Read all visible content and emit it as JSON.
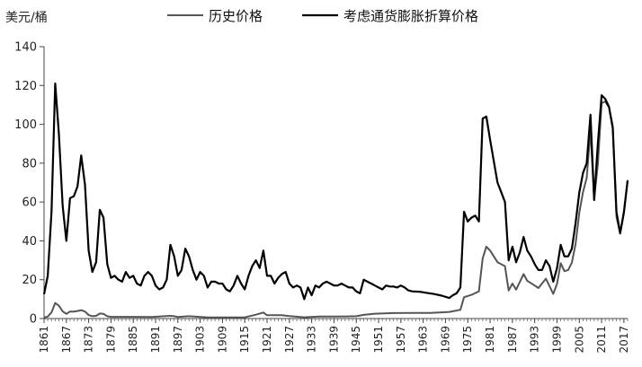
{
  "chart_data": {
    "type": "line",
    "title": "",
    "ylabel": "美元/桶",
    "xlabel": "",
    "ylim": [
      0,
      140
    ],
    "xlim": [
      1861,
      2018
    ],
    "yticks": [
      0,
      20,
      40,
      60,
      80,
      100,
      120,
      140
    ],
    "xticks": [
      1861,
      1867,
      1873,
      1879,
      1885,
      1891,
      1897,
      1903,
      1909,
      1915,
      1921,
      1927,
      1933,
      1939,
      1945,
      1951,
      1957,
      1963,
      1969,
      1975,
      1981,
      1987,
      1993,
      1999,
      2005,
      2011,
      2017
    ],
    "grid": false,
    "legend_position": "top",
    "series": [
      {
        "name": "历史价格",
        "color": "#555555",
        "points": [
          [
            1861,
            0.5
          ],
          [
            1862,
            1
          ],
          [
            1863,
            3.2
          ],
          [
            1864,
            8
          ],
          [
            1865,
            6.6
          ],
          [
            1866,
            3.7
          ],
          [
            1867,
            2.4
          ],
          [
            1868,
            3.6
          ],
          [
            1869,
            3.6
          ],
          [
            1870,
            3.9
          ],
          [
            1871,
            4.3
          ],
          [
            1872,
            3.6
          ],
          [
            1873,
            1.8
          ],
          [
            1874,
            1.2
          ],
          [
            1875,
            1.4
          ],
          [
            1876,
            2.6
          ],
          [
            1877,
            2.4
          ],
          [
            1878,
            1.2
          ],
          [
            1879,
            0.9
          ],
          [
            1880,
            0.9
          ],
          [
            1885,
            0.9
          ],
          [
            1890,
            0.8
          ],
          [
            1895,
            1.4
          ],
          [
            1896,
            1.2
          ],
          [
            1897,
            0.8
          ],
          [
            1900,
            1.2
          ],
          [
            1905,
            0.6
          ],
          [
            1910,
            0.6
          ],
          [
            1915,
            0.6
          ],
          [
            1918,
            2
          ],
          [
            1920,
            3.1
          ],
          [
            1921,
            1.7
          ],
          [
            1925,
            1.7
          ],
          [
            1927,
            1.3
          ],
          [
            1931,
            0.65
          ],
          [
            1935,
            1
          ],
          [
            1940,
            1.0
          ],
          [
            1945,
            1.2
          ],
          [
            1947,
            1.9
          ],
          [
            1950,
            2.5
          ],
          [
            1955,
            2.8
          ],
          [
            1960,
            2.9
          ],
          [
            1965,
            2.9
          ],
          [
            1970,
            3.4
          ],
          [
            1973,
            4.5
          ],
          [
            1974,
            11
          ],
          [
            1976,
            12.2
          ],
          [
            1978,
            14
          ],
          [
            1979,
            31
          ],
          [
            1980,
            37
          ],
          [
            1981,
            35
          ],
          [
            1982,
            32
          ],
          [
            1983,
            29
          ],
          [
            1985,
            27
          ],
          [
            1986,
            14.4
          ],
          [
            1987,
            18
          ],
          [
            1988,
            14.9
          ],
          [
            1990,
            22.9
          ],
          [
            1991,
            19.4
          ],
          [
            1993,
            17
          ],
          [
            1994,
            15.7
          ],
          [
            1996,
            20.5
          ],
          [
            1998,
            12.7
          ],
          [
            1999,
            17.9
          ],
          [
            2000,
            28.5
          ],
          [
            2001,
            24.4
          ],
          [
            2002,
            25
          ],
          [
            2003,
            28.8
          ],
          [
            2004,
            38.3
          ],
          [
            2005,
            54.5
          ],
          [
            2006,
            65.1
          ],
          [
            2007,
            72.4
          ],
          [
            2008,
            97
          ],
          [
            2009,
            61.7
          ],
          [
            2010,
            79.5
          ],
          [
            2011,
            111
          ],
          [
            2012,
            111.7
          ],
          [
            2013,
            108.7
          ],
          [
            2014,
            99
          ],
          [
            2015,
            52.4
          ],
          [
            2016,
            43.7
          ],
          [
            2017,
            54.2
          ],
          [
            2018,
            71.3
          ]
        ]
      },
      {
        "name": "考虑通货膨胀折算价格",
        "color": "#000000",
        "points": [
          [
            1861,
            12.5
          ],
          [
            1862,
            22
          ],
          [
            1863,
            55
          ],
          [
            1864,
            121
          ],
          [
            1865,
            95
          ],
          [
            1866,
            58
          ],
          [
            1867,
            40
          ],
          [
            1868,
            62
          ],
          [
            1869,
            63
          ],
          [
            1870,
            68
          ],
          [
            1871,
            84
          ],
          [
            1872,
            69
          ],
          [
            1873,
            35
          ],
          [
            1874,
            24
          ],
          [
            1875,
            29
          ],
          [
            1876,
            56
          ],
          [
            1877,
            52
          ],
          [
            1878,
            28
          ],
          [
            1879,
            21
          ],
          [
            1880,
            22
          ],
          [
            1881,
            20
          ],
          [
            1882,
            19
          ],
          [
            1883,
            24
          ],
          [
            1884,
            21
          ],
          [
            1885,
            22
          ],
          [
            1886,
            18
          ],
          [
            1887,
            17
          ],
          [
            1888,
            22
          ],
          [
            1889,
            24
          ],
          [
            1890,
            22
          ],
          [
            1891,
            17
          ],
          [
            1892,
            15
          ],
          [
            1893,
            16
          ],
          [
            1894,
            20
          ],
          [
            1895,
            38
          ],
          [
            1896,
            32
          ],
          [
            1897,
            22
          ],
          [
            1898,
            25
          ],
          [
            1899,
            36
          ],
          [
            1900,
            32
          ],
          [
            1901,
            25
          ],
          [
            1902,
            20
          ],
          [
            1903,
            24
          ],
          [
            1904,
            22
          ],
          [
            1905,
            16
          ],
          [
            1906,
            19
          ],
          [
            1907,
            19
          ],
          [
            1908,
            18
          ],
          [
            1909,
            18
          ],
          [
            1910,
            15
          ],
          [
            1911,
            14
          ],
          [
            1912,
            17
          ],
          [
            1913,
            22
          ],
          [
            1914,
            18
          ],
          [
            1915,
            15
          ],
          [
            1916,
            22
          ],
          [
            1917,
            27
          ],
          [
            1918,
            30
          ],
          [
            1919,
            26
          ],
          [
            1920,
            35
          ],
          [
            1921,
            22
          ],
          [
            1922,
            22
          ],
          [
            1923,
            18
          ],
          [
            1924,
            21
          ],
          [
            1925,
            23
          ],
          [
            1926,
            24
          ],
          [
            1927,
            18
          ],
          [
            1928,
            16
          ],
          [
            1929,
            17
          ],
          [
            1930,
            16
          ],
          [
            1931,
            10
          ],
          [
            1932,
            16
          ],
          [
            1933,
            12
          ],
          [
            1934,
            17
          ],
          [
            1935,
            16
          ],
          [
            1936,
            18
          ],
          [
            1937,
            19
          ],
          [
            1938,
            18
          ],
          [
            1939,
            17
          ],
          [
            1940,
            17
          ],
          [
            1941,
            18
          ],
          [
            1942,
            17
          ],
          [
            1943,
            16
          ],
          [
            1944,
            16
          ],
          [
            1945,
            14
          ],
          [
            1946,
            13
          ],
          [
            1947,
            20
          ],
          [
            1948,
            19
          ],
          [
            1949,
            18
          ],
          [
            1950,
            17
          ],
          [
            1951,
            16
          ],
          [
            1952,
            15
          ],
          [
            1953,
            17
          ],
          [
            1954,
            16.5
          ],
          [
            1955,
            16.5
          ],
          [
            1956,
            16
          ],
          [
            1957,
            17
          ],
          [
            1958,
            16
          ],
          [
            1959,
            14.5
          ],
          [
            1960,
            14
          ],
          [
            1962,
            13.8
          ],
          [
            1964,
            13.2
          ],
          [
            1966,
            12.6
          ],
          [
            1968,
            11.8
          ],
          [
            1970,
            10.6
          ],
          [
            1971,
            12
          ],
          [
            1972,
            13
          ],
          [
            1973,
            16
          ],
          [
            1974,
            55
          ],
          [
            1975,
            50
          ],
          [
            1976,
            52
          ],
          [
            1977,
            53
          ],
          [
            1978,
            50
          ],
          [
            1979,
            103
          ],
          [
            1980,
            104
          ],
          [
            1981,
            92
          ],
          [
            1982,
            81
          ],
          [
            1983,
            70
          ],
          [
            1984,
            65
          ],
          [
            1985,
            60
          ],
          [
            1986,
            30
          ],
          [
            1987,
            37
          ],
          [
            1988,
            29
          ],
          [
            1989,
            34
          ],
          [
            1990,
            42
          ],
          [
            1991,
            35
          ],
          [
            1992,
            32
          ],
          [
            1993,
            28
          ],
          [
            1994,
            25
          ],
          [
            1995,
            25
          ],
          [
            1996,
            30
          ],
          [
            1997,
            27
          ],
          [
            1998,
            19
          ],
          [
            1999,
            26
          ],
          [
            2000,
            38
          ],
          [
            2001,
            32
          ],
          [
            2002,
            32
          ],
          [
            2003,
            36
          ],
          [
            2004,
            49
          ],
          [
            2005,
            65
          ],
          [
            2006,
            75
          ],
          [
            2007,
            80
          ],
          [
            2008,
            105
          ],
          [
            2009,
            61
          ],
          [
            2010,
            90
          ],
          [
            2011,
            115
          ],
          [
            2012,
            113
          ],
          [
            2013,
            109
          ],
          [
            2014,
            98
          ],
          [
            2015,
            55
          ],
          [
            2016,
            44
          ],
          [
            2017,
            55
          ],
          [
            2018,
            71
          ]
        ]
      }
    ]
  }
}
